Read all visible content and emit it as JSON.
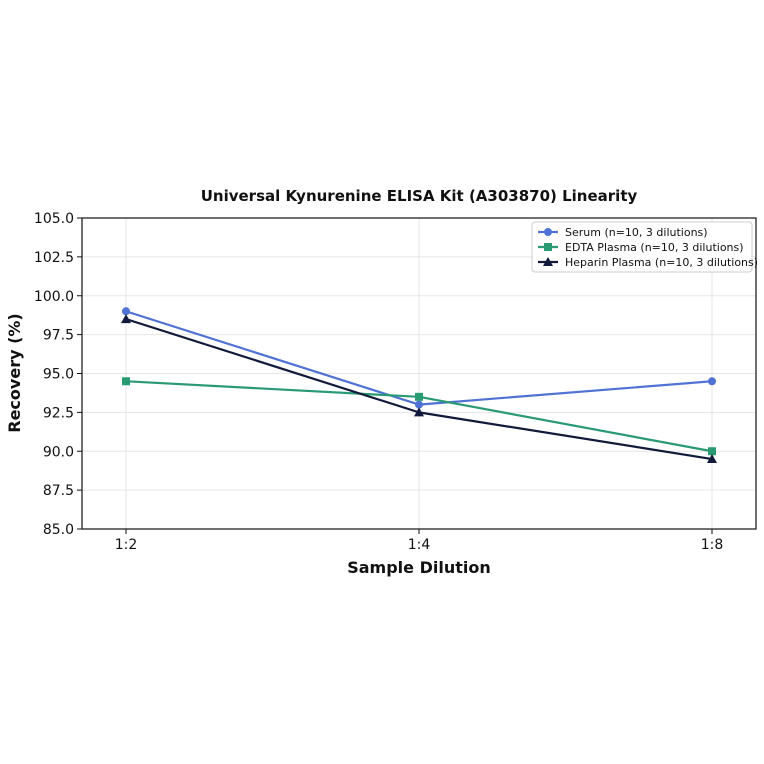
{
  "chart_data": {
    "type": "line",
    "title": "Universal Kynurenine ELISA Kit (A303870) Linearity",
    "xlabel": "Sample Dilution",
    "ylabel": "Recovery (%)",
    "categories": [
      "1:2",
      "1:4",
      "1:8"
    ],
    "ylim": [
      85.0,
      105.0
    ],
    "yticks": [
      "85.0",
      "87.5",
      "90.0",
      "92.5",
      "95.0",
      "97.5",
      "100.0",
      "102.5",
      "105.0"
    ],
    "grid": true,
    "legend_position": "top-right",
    "series": [
      {
        "name": "Serum (n=10, 3 dilutions)",
        "values": [
          99.0,
          93.0,
          94.5
        ],
        "color": "#4f72d4",
        "marker": "circle"
      },
      {
        "name": "EDTA Plasma (n=10, 3 dilutions)",
        "values": [
          94.5,
          93.5,
          90.0
        ],
        "color": "#2a9a73",
        "marker": "square"
      },
      {
        "name": "Heparin Plasma (n=10, 3 dilutions)",
        "values": [
          98.5,
          92.5,
          89.5
        ],
        "color": "#111a3a",
        "marker": "triangle"
      }
    ]
  }
}
